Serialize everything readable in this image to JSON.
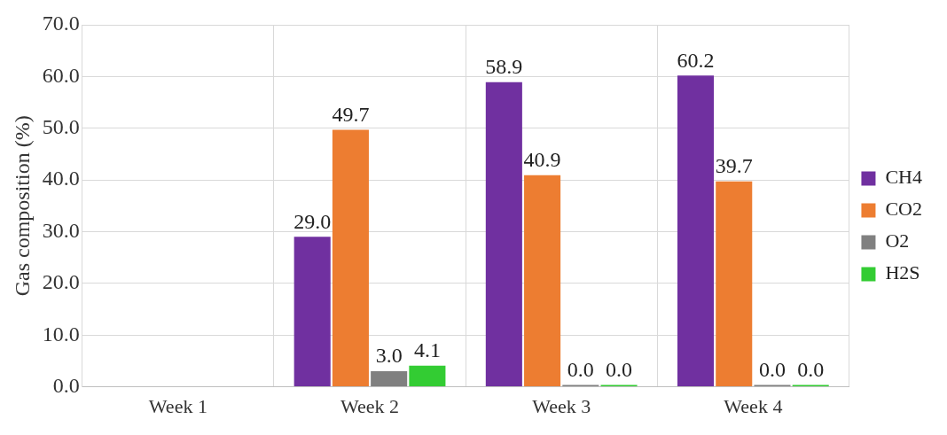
{
  "chart_data": {
    "type": "bar",
    "ylabel": "Gas composition (%)",
    "categories": [
      "Week 1",
      "Week 2",
      "Week 3",
      "Week 4"
    ],
    "series": [
      {
        "name": "CH4",
        "color": "#7030a0",
        "values": [
          null,
          29.0,
          58.9,
          60.2
        ],
        "value_labels": [
          null,
          "29.0",
          "58.9",
          "60.2"
        ]
      },
      {
        "name": "CO2",
        "color": "#ed7d31",
        "values": [
          null,
          49.7,
          40.9,
          39.7
        ],
        "value_labels": [
          null,
          "49.7",
          "40.9",
          "39.7"
        ]
      },
      {
        "name": "O2",
        "color": "#808080",
        "values": [
          null,
          3.0,
          0.0,
          0.0
        ],
        "value_labels": [
          null,
          "3.0",
          "0.0",
          "0.0"
        ]
      },
      {
        "name": "H2S",
        "color": "#33cc33",
        "values": [
          null,
          4.1,
          0.0,
          0.0
        ],
        "value_labels": [
          null,
          "4.1",
          "0.0",
          "0.0"
        ]
      }
    ],
    "ylim": [
      0,
      70
    ],
    "yticks": [
      {
        "value": 0,
        "label": "0.0"
      },
      {
        "value": 10,
        "label": "10.0"
      },
      {
        "value": 20,
        "label": "20.0"
      },
      {
        "value": 30,
        "label": "30.0"
      },
      {
        "value": 40,
        "label": "40.0"
      },
      {
        "value": 50,
        "label": "50.0"
      },
      {
        "value": 60,
        "label": "60.0"
      },
      {
        "value": 70,
        "label": "70.0"
      }
    ],
    "grid": true,
    "legend": "right"
  }
}
